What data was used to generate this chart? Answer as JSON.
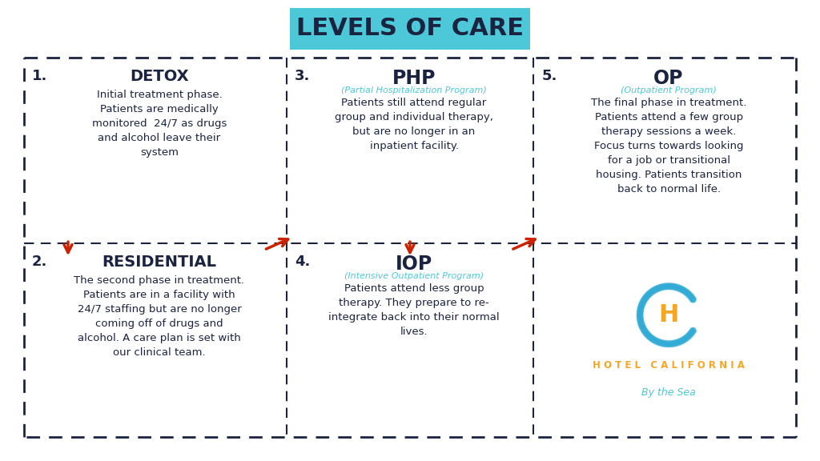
{
  "title": "LEVELS OF CARE",
  "title_bg": "#4DC8D8",
  "title_color": "#1a2340",
  "bg_color": "#ffffff",
  "border_color": "#1a2340",
  "text_dark": "#1a2340",
  "text_body": "#1a2340",
  "red_arrow": "#cc2200",
  "cyan_text": "#4DC8D8",
  "orange_text": "#F5A623",
  "cells": [
    {
      "num": "1.",
      "heading": "DETOX",
      "heading_sub": "",
      "body": "Initial treatment phase.\nPatients are medically\nmonitored  24/7 as drugs\nand alcohol leave their\nsystem",
      "col": 0,
      "row": 0
    },
    {
      "num": "3.",
      "heading": "PHP",
      "heading_sub": "(Partial Hospitalization Program)",
      "body": "Patients still attend regular\ngroup and individual therapy,\nbut are no longer in an\ninpatient facility.",
      "col": 1,
      "row": 0
    },
    {
      "num": "5.",
      "heading": "OP",
      "heading_sub": "(Outpatient Program)",
      "body": "The final phase in treatment.\nPatients attend a few group\ntherapy sessions a week.\nFocus turns towards looking\nfor a job or transitional\nhousing. Patients transition\nback to normal life.",
      "col": 2,
      "row": 0
    },
    {
      "num": "2.",
      "heading": "RESIDENTIAL",
      "heading_sub": "",
      "body": "The second phase in treatment.\nPatients are in a facility with\n24/7 staffing but are no longer\ncoming off of drugs and\nalcohol. A care plan is set with\nour clinical team.",
      "col": 0,
      "row": 1
    },
    {
      "num": "4.",
      "heading": "IOP",
      "heading_sub": "(Intensive Outpatient Program)",
      "body": "Patients attend less group\ntherapy. They prepare to re-\nintegrate back into their normal\nlives.",
      "col": 1,
      "row": 1
    }
  ],
  "logo_cell": {
    "col": 2,
    "row": 1
  },
  "hotel_name": "H O T E L   C A L I F O R N I A",
  "hotel_sub": "By the Sea"
}
